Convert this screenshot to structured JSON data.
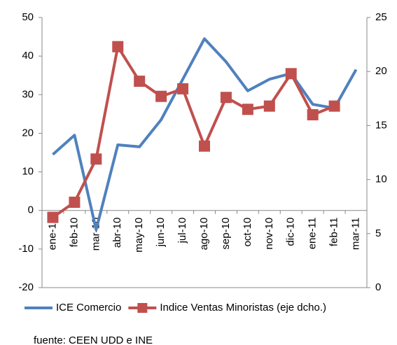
{
  "chart_data": {
    "type": "line",
    "categories": [
      "ene-10",
      "feb-10",
      "mar-10",
      "abr-10",
      "may-10",
      "jun-10",
      "jul-10",
      "ago-10",
      "sep-10",
      "oct-10",
      "nov-10",
      "dic-10",
      "ene-11",
      "feb-11",
      "mar-11"
    ],
    "series": [
      {
        "name": "ICE Comercio",
        "color": "#4f81bd",
        "values": [
          14.5,
          19.5,
          -5,
          17,
          16.5,
          23.5,
          34,
          44.5,
          38.5,
          31,
          34,
          35.5,
          27.5,
          26.5,
          36.5
        ]
      },
      {
        "name": "Indice Ventas Minoristas (eje dcho.)",
        "color": "#c0504d",
        "axis": "y2",
        "marker": "square",
        "values": [
          6.5,
          7.9,
          11.9,
          22.3,
          19.1,
          17.7,
          18.4,
          13.1,
          17.6,
          16.5,
          16.8,
          19.8,
          16.0,
          16.8,
          null
        ]
      }
    ],
    "ylim": [
      -20,
      50
    ],
    "yticks": [
      -20,
      -10,
      0,
      10,
      20,
      30,
      40,
      50
    ],
    "y2lim": [
      0,
      25
    ],
    "y2ticks": [
      0,
      5,
      10,
      15,
      20,
      25
    ],
    "legend": "bottom",
    "source": "fuente: CEEN UDD e INE"
  }
}
